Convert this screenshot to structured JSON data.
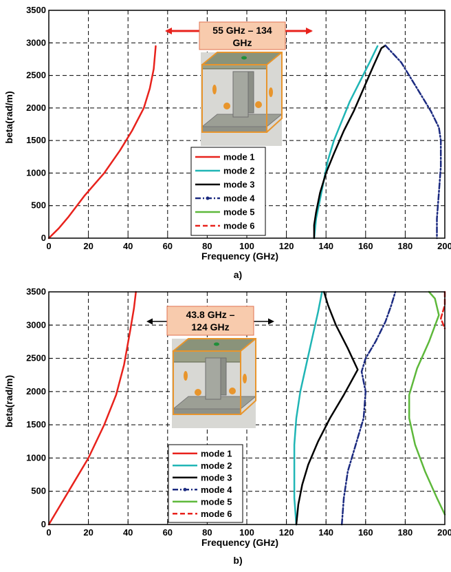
{
  "chart_data": [
    {
      "type": "line",
      "panel_label": "a)",
      "xlabel": "Frequency (GHz)",
      "ylabel": "beta(rad/m)",
      "xlim": [
        0,
        200
      ],
      "ylim": [
        0,
        3500
      ],
      "xticks": [
        0,
        20,
        40,
        60,
        80,
        100,
        120,
        140,
        160,
        180,
        200
      ],
      "yticks": [
        0,
        500,
        1000,
        1500,
        2000,
        2500,
        3000,
        3500
      ],
      "grid": true,
      "legend_position": "center",
      "band_annotation": {
        "line1": "55 GHz – 134",
        "line2": "GHz",
        "from": 55,
        "to": 134
      },
      "series": [
        {
          "name": "mode 1",
          "color": "#e8221c",
          "dash": "solid",
          "points": [
            [
              0,
              0
            ],
            [
              5,
              150
            ],
            [
              10,
              330
            ],
            [
              18,
              650
            ],
            [
              28,
              1000
            ],
            [
              36,
              1350
            ],
            [
              42,
              1650
            ],
            [
              48,
              2000
            ],
            [
              51,
              2300
            ],
            [
              53,
              2600
            ],
            [
              54,
              2950
            ]
          ]
        },
        {
          "name": "mode 2",
          "color": "#1fb5b5",
          "dash": "solid",
          "points": [
            [
              134,
              0
            ],
            [
              135,
              300
            ],
            [
              137,
              600
            ],
            [
              139,
              900
            ],
            [
              141,
              1200
            ],
            [
              144,
              1500
            ],
            [
              148,
              1800
            ],
            [
              152,
              2100
            ],
            [
              157,
              2400
            ],
            [
              162,
              2700
            ],
            [
              166,
              2950
            ]
          ]
        },
        {
          "name": "mode 3",
          "color": "#000000",
          "dash": "solid",
          "points": [
            [
              134,
              0
            ],
            [
              134,
              200
            ],
            [
              135,
              400
            ],
            [
              137,
              700
            ],
            [
              140,
              1000
            ],
            [
              144,
              1300
            ],
            [
              149,
              1650
            ],
            [
              154,
              1950
            ],
            [
              159,
              2300
            ],
            [
              164,
              2650
            ],
            [
              168,
              2920
            ],
            [
              170,
              2960
            ]
          ]
        },
        {
          "name": "mode 4",
          "color": "#1b2a80",
          "dash": "dashdot",
          "points": [
            [
              170,
              2960
            ],
            [
              178,
              2700
            ],
            [
              186,
              2300
            ],
            [
              193,
              1950
            ],
            [
              197,
              1700
            ],
            [
              198,
              1500
            ],
            [
              198,
              1100
            ],
            [
              197,
              700
            ],
            [
              196,
              300
            ],
            [
              196,
              0
            ]
          ]
        },
        {
          "name": "mode 5",
          "color": "#5db83a",
          "dash": "solid",
          "points": []
        },
        {
          "name": "mode 6",
          "color": "#e8221c",
          "dash": "dashed",
          "points": []
        }
      ]
    },
    {
      "type": "line",
      "panel_label": "b)",
      "xlabel": "Frequency (GHz)",
      "ylabel": "beta(rad/m)",
      "xlim": [
        0,
        200
      ],
      "ylim": [
        0,
        3500
      ],
      "xticks": [
        0,
        20,
        40,
        60,
        80,
        100,
        120,
        140,
        160,
        180,
        200
      ],
      "yticks": [
        0,
        500,
        1000,
        1500,
        2000,
        2500,
        3000,
        3500
      ],
      "grid": true,
      "legend_position": "bottom-left",
      "band_annotation": {
        "line1": "43.8 GHz –",
        "line2": "124 GHz",
        "from": 43.8,
        "to": 124
      },
      "series": [
        {
          "name": "mode 1",
          "color": "#e8221c",
          "dash": "solid",
          "points": [
            [
              0,
              0
            ],
            [
              5,
              250
            ],
            [
              10,
              500
            ],
            [
              20,
              1000
            ],
            [
              28,
              1500
            ],
            [
              34,
              1950
            ],
            [
              38,
              2400
            ],
            [
              41,
              2900
            ],
            [
              43,
              3250
            ],
            [
              44,
              3500
            ]
          ]
        },
        {
          "name": "mode 2",
          "color": "#1fb5b5",
          "dash": "solid",
          "points": [
            [
              125,
              0
            ],
            [
              124,
              400
            ],
            [
              124,
              800
            ],
            [
              124,
              1200
            ],
            [
              125,
              1600
            ],
            [
              127,
              2000
            ],
            [
              130,
              2400
            ],
            [
              133,
              2800
            ],
            [
              136,
              3200
            ],
            [
              138,
              3500
            ]
          ]
        },
        {
          "name": "mode 3",
          "color": "#000000",
          "dash": "solid",
          "points": [
            [
              125,
              0
            ],
            [
              126,
              300
            ],
            [
              128,
              600
            ],
            [
              131,
              900
            ],
            [
              136,
              1250
            ],
            [
              142,
              1600
            ],
            [
              149,
              1950
            ],
            [
              156,
              2330
            ],
            [
              151,
              2650
            ],
            [
              145,
              3000
            ],
            [
              141,
              3300
            ],
            [
              139,
              3500
            ]
          ]
        },
        {
          "name": "mode 4",
          "color": "#1b2a80",
          "dash": "dashdot",
          "points": [
            [
              148,
              0
            ],
            [
              149,
              400
            ],
            [
              151,
              800
            ],
            [
              155,
              1200
            ],
            [
              159,
              1600
            ],
            [
              160,
              2000
            ],
            [
              158,
              2300
            ],
            [
              160,
              2500
            ],
            [
              165,
              2750
            ],
            [
              170,
              3050
            ],
            [
              173,
              3300
            ],
            [
              175,
              3500
            ]
          ]
        },
        {
          "name": "mode 5",
          "color": "#5db83a",
          "dash": "solid",
          "points": [
            [
              200,
              150
            ],
            [
              196,
              400
            ],
            [
              190,
              800
            ],
            [
              185,
              1200
            ],
            [
              182,
              1600
            ],
            [
              182,
              1950
            ],
            [
              186,
              2350
            ],
            [
              192,
              2750
            ],
            [
              197,
              3150
            ],
            [
              195,
              3400
            ],
            [
              192,
              3500
            ]
          ]
        },
        {
          "name": "mode 6",
          "color": "#e8221c",
          "dash": "dashed",
          "points": [
            [
              200,
              3500
            ],
            [
              200,
              3300
            ],
            [
              198,
              3100
            ],
            [
              200,
              2950
            ]
          ]
        }
      ]
    }
  ]
}
